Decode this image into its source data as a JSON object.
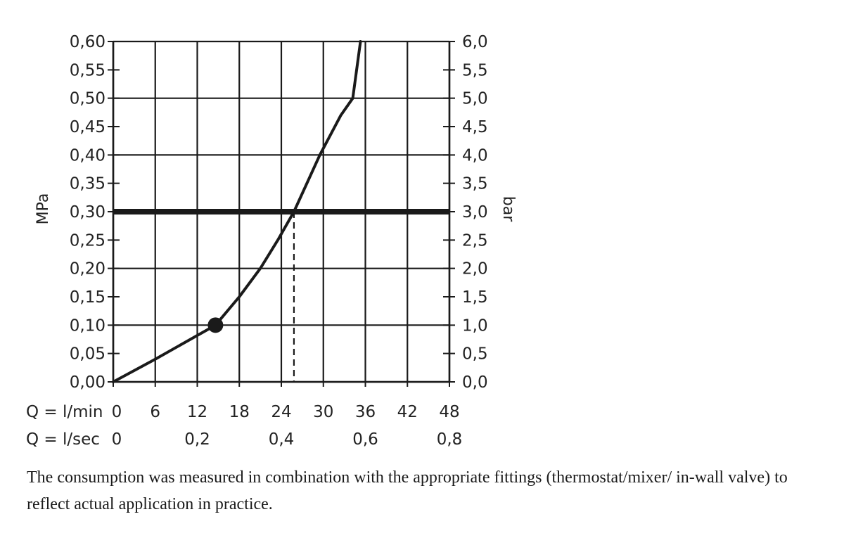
{
  "chart_data": {
    "type": "line",
    "left_axis_label": "MPa",
    "right_axis_label": "bar",
    "left_ticks": [
      "0,00",
      "0,05",
      "0,10",
      "0,15",
      "0,20",
      "0,25",
      "0,30",
      "0,35",
      "0,40",
      "0,45",
      "0,50",
      "0,55",
      "0,60"
    ],
    "right_ticks": [
      "0,0",
      "0,5",
      "1,0",
      "1,5",
      "2,0",
      "2,5",
      "3,0",
      "3,5",
      "4,0",
      "4,5",
      "5,0",
      "5,5",
      "6,0"
    ],
    "xlim": [
      0,
      48
    ],
    "ylim": [
      0,
      0.6
    ],
    "grid": true,
    "x_rows": [
      {
        "label": "Q = l/min",
        "ticks": [
          {
            "text": "0",
            "x": 0
          },
          {
            "text": "6",
            "x": 6
          },
          {
            "text": "12",
            "x": 12
          },
          {
            "text": "18",
            "x": 18
          },
          {
            "text": "24",
            "x": 24
          },
          {
            "text": "30",
            "x": 30
          },
          {
            "text": "36",
            "x": 36
          },
          {
            "text": "42",
            "x": 42
          },
          {
            "text": "48",
            "x": 48
          }
        ]
      },
      {
        "label": "Q = l/sec",
        "ticks": [
          {
            "text": "0",
            "x": 0
          },
          {
            "text": "0,2",
            "x": 12
          },
          {
            "text": "0,4",
            "x": 24
          },
          {
            "text": "0,6",
            "x": 36
          },
          {
            "text": "0,8",
            "x": 48
          }
        ]
      }
    ],
    "series": [
      {
        "x": [
          0,
          6,
          14.6,
          18,
          21,
          23.5,
          25.8,
          29.5,
          32.5,
          34.2,
          35.3
        ],
        "y": [
          0,
          0.04,
          0.1,
          0.15,
          0.2,
          0.25,
          0.3,
          0.4,
          0.47,
          0.5,
          0.6
        ],
        "color": "#1a1a1a"
      }
    ],
    "reference_line": {
      "y": 0.3,
      "color": "#1a1a1a"
    },
    "marker_point": {
      "x": 14.6,
      "y": 0.1
    },
    "dashed_drop": {
      "x": 25.8,
      "y": 0.3
    }
  },
  "caption": "The consumption was measured in combination with the appropriate fittings (thermostat/mixer/ in-wall valve) to reflect actual application in practice."
}
